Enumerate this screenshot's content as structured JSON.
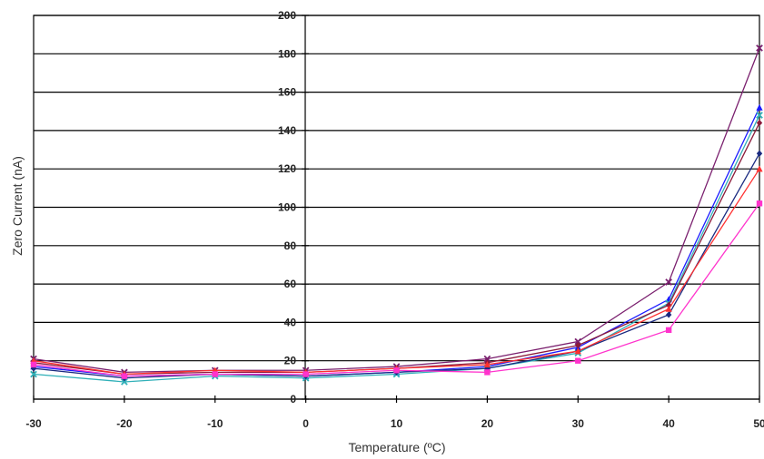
{
  "chart_data": {
    "type": "line",
    "title": "",
    "xlabel": "Temperature (ºC)",
    "ylabel": "Zero Current (nA)",
    "x": [
      -30,
      -20,
      -10,
      0,
      10,
      20,
      30,
      40,
      50
    ],
    "xlim": [
      -30,
      50
    ],
    "ylim": [
      0,
      200
    ],
    "x_ticks": [
      "-30",
      "-20",
      "-10",
      "0",
      "10",
      "20",
      "30",
      "40",
      "50"
    ],
    "y_ticks": [
      "0",
      "20",
      "40",
      "60",
      "80",
      "100",
      "120",
      "140",
      "160",
      "180",
      "200"
    ],
    "grid": "horizontal",
    "legend": "none",
    "series": [
      {
        "color": "#7a1f6e",
        "marker": "x",
        "values": [
          21,
          14,
          15,
          15,
          17,
          21,
          30,
          61,
          183
        ]
      },
      {
        "color": "#1a1aff",
        "marker": "triangle",
        "values": [
          17,
          12,
          13,
          12,
          14,
          17,
          27,
          52,
          152
        ]
      },
      {
        "color": "#30b0b8",
        "marker": "x",
        "values": [
          13,
          9,
          12,
          11,
          13,
          16,
          24,
          50,
          148
        ]
      },
      {
        "color": "#8b1a3a",
        "marker": "diamond",
        "values": [
          19,
          13,
          14,
          14,
          16,
          19,
          28,
          49,
          144
        ]
      },
      {
        "color": "#1a2a80",
        "marker": "diamond",
        "values": [
          16,
          11,
          13,
          12,
          14,
          16,
          25,
          44,
          128
        ]
      },
      {
        "color": "#ff3030",
        "marker": "triangle",
        "values": [
          20,
          13,
          15,
          14,
          16,
          18,
          25,
          47,
          120
        ]
      },
      {
        "color": "#ff33cc",
        "marker": "square",
        "values": [
          18,
          12,
          13,
          13,
          15,
          14,
          20,
          36,
          102
        ]
      }
    ]
  }
}
